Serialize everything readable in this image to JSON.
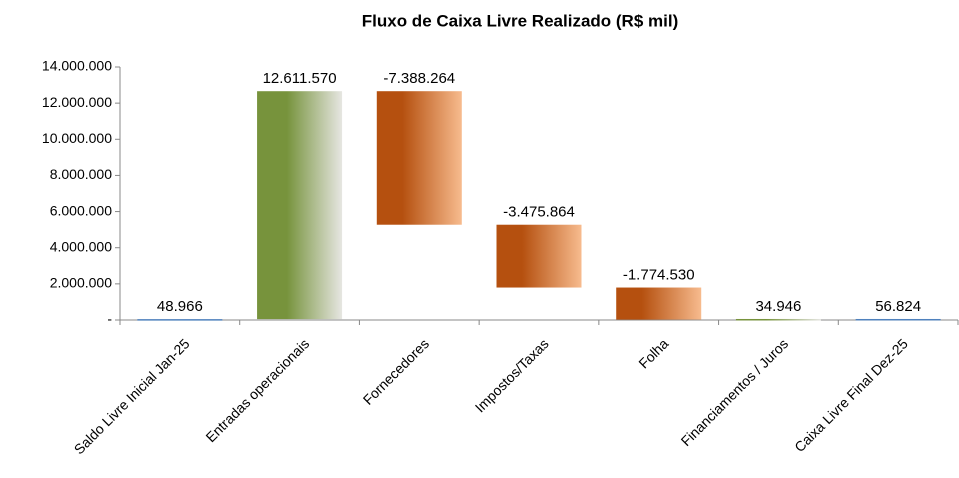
{
  "chart_data": {
    "type": "waterfall",
    "title": "Fluxo de Caixa Livre Realizado (R$ mil)",
    "categories": [
      "Saldo Livre Inicial Jan-25",
      "Entradas operacionais",
      "Fornecedores",
      "Impostos/Taxas",
      "Folha",
      "Financiamentos / Juros",
      "Caixa Livre Final Dez-25"
    ],
    "values": [
      48966,
      12611570,
      -7388264,
      -3475864,
      -1774530,
      34946,
      56824
    ],
    "value_labels": [
      "48.966",
      "12.611.570",
      "-7.388.264",
      "-3.475.864",
      "-1.774.530",
      "34.946",
      "56.824"
    ],
    "total_color": "#4f81bd",
    "increase_color": "#77933c",
    "decrease_color": "#b5500f",
    "ylim": [
      0,
      14000000
    ],
    "yticks": [
      {
        "value": 0,
        "label": "-"
      },
      {
        "value": 2000000,
        "label": "2.000.000"
      },
      {
        "value": 4000000,
        "label": "4.000.000"
      },
      {
        "value": 6000000,
        "label": "6.000.000"
      },
      {
        "value": 8000000,
        "label": "8.000.000"
      },
      {
        "value": 10000000,
        "label": "10.000.000"
      },
      {
        "value": 12000000,
        "label": "12.000.000"
      },
      {
        "value": 14000000,
        "label": "14.000.000"
      }
    ]
  }
}
